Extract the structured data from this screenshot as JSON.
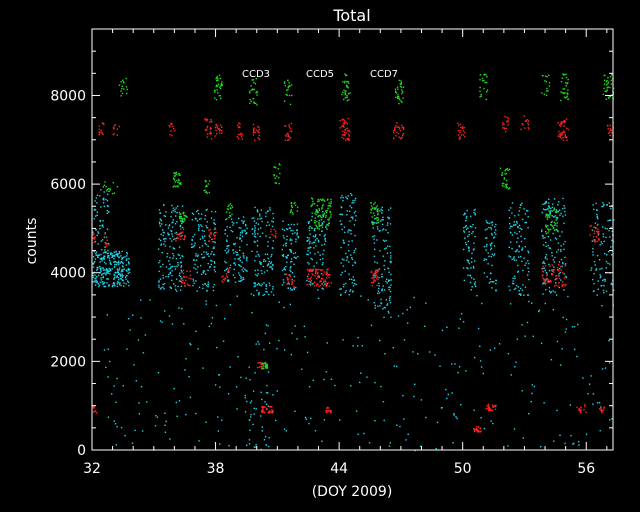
{
  "chart_data": {
    "type": "scatter",
    "title": "Total",
    "xlabel": "(DOY 2009)",
    "ylabel": "counts",
    "xlim": [
      32,
      57.3
    ],
    "ylim": [
      0,
      9500
    ],
    "xticks": [
      32,
      38,
      44,
      50,
      56
    ],
    "yticks": [
      0,
      2000,
      4000,
      6000,
      8000
    ],
    "grid": false,
    "legend_position": "top-center",
    "series": [
      {
        "name": "CCD3",
        "color": "#22d3e6",
        "clusters": [
          {
            "x": [
              32.0,
              33.8
            ],
            "y": [
              3700,
              4500
            ],
            "n": 260
          },
          {
            "x": [
              32.0,
              32.8
            ],
            "y": [
              4500,
              5900
            ],
            "n": 60
          },
          {
            "x": [
              35.2,
              36.4
            ],
            "y": [
              3600,
              5600
            ],
            "n": 160
          },
          {
            "x": [
              36.8,
              38.0
            ],
            "y": [
              3600,
              5500
            ],
            "n": 130
          },
          {
            "x": [
              38.4,
              39.5
            ],
            "y": [
              3800,
              5300
            ],
            "n": 120
          },
          {
            "x": [
              39.7,
              40.8
            ],
            "y": [
              3500,
              5500
            ],
            "n": 130
          },
          {
            "x": [
              41.2,
              42.0
            ],
            "y": [
              3600,
              5200
            ],
            "n": 90
          },
          {
            "x": [
              42.4,
              43.4
            ],
            "y": [
              3600,
              5400
            ],
            "n": 110
          },
          {
            "x": [
              44.0,
              44.8
            ],
            "y": [
              3500,
              5800
            ],
            "n": 100
          },
          {
            "x": [
              45.6,
              46.5
            ],
            "y": [
              3000,
              5500
            ],
            "n": 120
          },
          {
            "x": [
              50.0,
              50.6
            ],
            "y": [
              3600,
              5500
            ],
            "n": 70
          },
          {
            "x": [
              51.0,
              51.6
            ],
            "y": [
              3600,
              5200
            ],
            "n": 60
          },
          {
            "x": [
              52.2,
              53.2
            ],
            "y": [
              3500,
              5600
            ],
            "n": 110
          },
          {
            "x": [
              53.8,
              55.0
            ],
            "y": [
              3500,
              5700
            ],
            "n": 150
          },
          {
            "x": [
              56.2,
              57.3
            ],
            "y": [
              3500,
              5600
            ],
            "n": 100
          },
          {
            "x": [
              32.5,
              57.3
            ],
            "y": [
              0,
              3500
            ],
            "n": 320
          },
          {
            "x": [
              39.4,
              40.6
            ],
            "y": [
              0,
              1800
            ],
            "n": 40
          }
        ]
      },
      {
        "name": "CCD5",
        "color": "#22dd22",
        "clusters": [
          {
            "x": [
              32.5,
              33.2
            ],
            "y": [
              5800,
              6100
            ],
            "n": 12
          },
          {
            "x": [
              33.3,
              33.7
            ],
            "y": [
              8000,
              8500
            ],
            "n": 15
          },
          {
            "x": [
              35.9,
              36.3
            ],
            "y": [
              5950,
              6300
            ],
            "n": 30
          },
          {
            "x": [
              36.2,
              36.6
            ],
            "y": [
              5100,
              5400
            ],
            "n": 25
          },
          {
            "x": [
              37.4,
              37.7
            ],
            "y": [
              5800,
              6100
            ],
            "n": 15
          },
          {
            "x": [
              37.9,
              38.3
            ],
            "y": [
              7900,
              8500
            ],
            "n": 30
          },
          {
            "x": [
              38.5,
              38.8
            ],
            "y": [
              5200,
              5600
            ],
            "n": 15
          },
          {
            "x": [
              39.6,
              40.0
            ],
            "y": [
              7800,
              8400
            ],
            "n": 25
          },
          {
            "x": [
              40.2,
              40.5
            ],
            "y": [
              1850,
              2000
            ],
            "n": 30
          },
          {
            "x": [
              40.8,
              41.1
            ],
            "y": [
              6000,
              6500
            ],
            "n": 15
          },
          {
            "x": [
              41.3,
              41.7
            ],
            "y": [
              7800,
              8400
            ],
            "n": 20
          },
          {
            "x": [
              41.6,
              42.0
            ],
            "y": [
              5300,
              5600
            ],
            "n": 15
          },
          {
            "x": [
              42.6,
              43.6
            ],
            "y": [
              5000,
              5700
            ],
            "n": 90
          },
          {
            "x": [
              44.1,
              44.5
            ],
            "y": [
              7900,
              8500
            ],
            "n": 30
          },
          {
            "x": [
              45.5,
              45.9
            ],
            "y": [
              5100,
              5600
            ],
            "n": 35
          },
          {
            "x": [
              46.7,
              47.1
            ],
            "y": [
              7800,
              8400
            ],
            "n": 30
          },
          {
            "x": [
              50.8,
              51.2
            ],
            "y": [
              7900,
              8500
            ],
            "n": 20
          },
          {
            "x": [
              51.8,
              52.3
            ],
            "y": [
              5900,
              6400
            ],
            "n": 30
          },
          {
            "x": [
              53.8,
              54.2
            ],
            "y": [
              8000,
              8500
            ],
            "n": 15
          },
          {
            "x": [
              54.0,
              54.6
            ],
            "y": [
              4900,
              5500
            ],
            "n": 45
          },
          {
            "x": [
              54.7,
              55.1
            ],
            "y": [
              7900,
              8500
            ],
            "n": 30
          },
          {
            "x": [
              56.8,
              57.3
            ],
            "y": [
              7900,
              8500
            ],
            "n": 35
          }
        ]
      },
      {
        "name": "CCD7",
        "color": "#ff2222",
        "clusters": [
          {
            "x": [
              32.0,
              32.2
            ],
            "y": [
              4700,
              4900
            ],
            "n": 10
          },
          {
            "x": [
              32.0,
              32.2
            ],
            "y": [
              850,
              1000
            ],
            "n": 8
          },
          {
            "x": [
              32.3,
              32.6
            ],
            "y": [
              7100,
              7400
            ],
            "n": 12
          },
          {
            "x": [
              32.6,
              32.8
            ],
            "y": [
              4600,
              4900
            ],
            "n": 8
          },
          {
            "x": [
              33.0,
              33.3
            ],
            "y": [
              7100,
              7400
            ],
            "n": 10
          },
          {
            "x": [
              35.7,
              36.0
            ],
            "y": [
              7100,
              7400
            ],
            "n": 12
          },
          {
            "x": [
              36.0,
              36.5
            ],
            "y": [
              4700,
              5000
            ],
            "n": 25
          },
          {
            "x": [
              36.3,
              36.8
            ],
            "y": [
              3700,
              4100
            ],
            "n": 25
          },
          {
            "x": [
              37.4,
              37.8
            ],
            "y": [
              7000,
              7500
            ],
            "n": 25
          },
          {
            "x": [
              37.6,
              38.0
            ],
            "y": [
              4700,
              5000
            ],
            "n": 20
          },
          {
            "x": [
              37.9,
              38.3
            ],
            "y": [
              7100,
              7400
            ],
            "n": 20
          },
          {
            "x": [
              38.2,
              38.6
            ],
            "y": [
              3800,
              4100
            ],
            "n": 15
          },
          {
            "x": [
              39.0,
              39.3
            ],
            "y": [
              7000,
              7400
            ],
            "n": 15
          },
          {
            "x": [
              39.8,
              40.1
            ],
            "y": [
              7000,
              7400
            ],
            "n": 20
          },
          {
            "x": [
              40.0,
              40.3
            ],
            "y": [
              1850,
              2000
            ],
            "n": 10
          },
          {
            "x": [
              40.2,
              40.8
            ],
            "y": [
              850,
              1000
            ],
            "n": 35
          },
          {
            "x": [
              40.6,
              40.9
            ],
            "y": [
              4800,
              5000
            ],
            "n": 10
          },
          {
            "x": [
              41.3,
              41.7
            ],
            "y": [
              7000,
              7400
            ],
            "n": 20
          },
          {
            "x": [
              41.4,
              41.8
            ],
            "y": [
              3700,
              4000
            ],
            "n": 15
          },
          {
            "x": [
              42.4,
              43.6
            ],
            "y": [
              3700,
              4100
            ],
            "n": 80
          },
          {
            "x": [
              43.3,
              43.6
            ],
            "y": [
              850,
              1000
            ],
            "n": 15
          },
          {
            "x": [
              44.0,
              44.5
            ],
            "y": [
              7000,
              7500
            ],
            "n": 40
          },
          {
            "x": [
              45.5,
              45.9
            ],
            "y": [
              3700,
              4100
            ],
            "n": 30
          },
          {
            "x": [
              46.6,
              47.1
            ],
            "y": [
              7000,
              7400
            ],
            "n": 30
          },
          {
            "x": [
              49.7,
              50.1
            ],
            "y": [
              7000,
              7400
            ],
            "n": 20
          },
          {
            "x": [
              50.5,
              51.0
            ],
            "y": [
              420,
              550
            ],
            "n": 25
          },
          {
            "x": [
              51.1,
              51.6
            ],
            "y": [
              900,
              1050
            ],
            "n": 25
          },
          {
            "x": [
              51.9,
              52.2
            ],
            "y": [
              7200,
              7600
            ],
            "n": 15
          },
          {
            "x": [
              52.8,
              53.2
            ],
            "y": [
              7200,
              7600
            ],
            "n": 15
          },
          {
            "x": [
              53.8,
              55.0
            ],
            "y": [
              3700,
              4200
            ],
            "n": 60
          },
          {
            "x": [
              54.6,
              55.1
            ],
            "y": [
              7000,
              7500
            ],
            "n": 40
          },
          {
            "x": [
              55.5,
              56.0
            ],
            "y": [
              850,
              1050
            ],
            "n": 15
          },
          {
            "x": [
              56.1,
              56.6
            ],
            "y": [
              4700,
              5100
            ],
            "n": 25
          },
          {
            "x": [
              56.6,
              56.9
            ],
            "y": [
              850,
              1000
            ],
            "n": 10
          },
          {
            "x": [
              57.0,
              57.3
            ],
            "y": [
              7100,
              7400
            ],
            "n": 15
          }
        ]
      }
    ]
  }
}
